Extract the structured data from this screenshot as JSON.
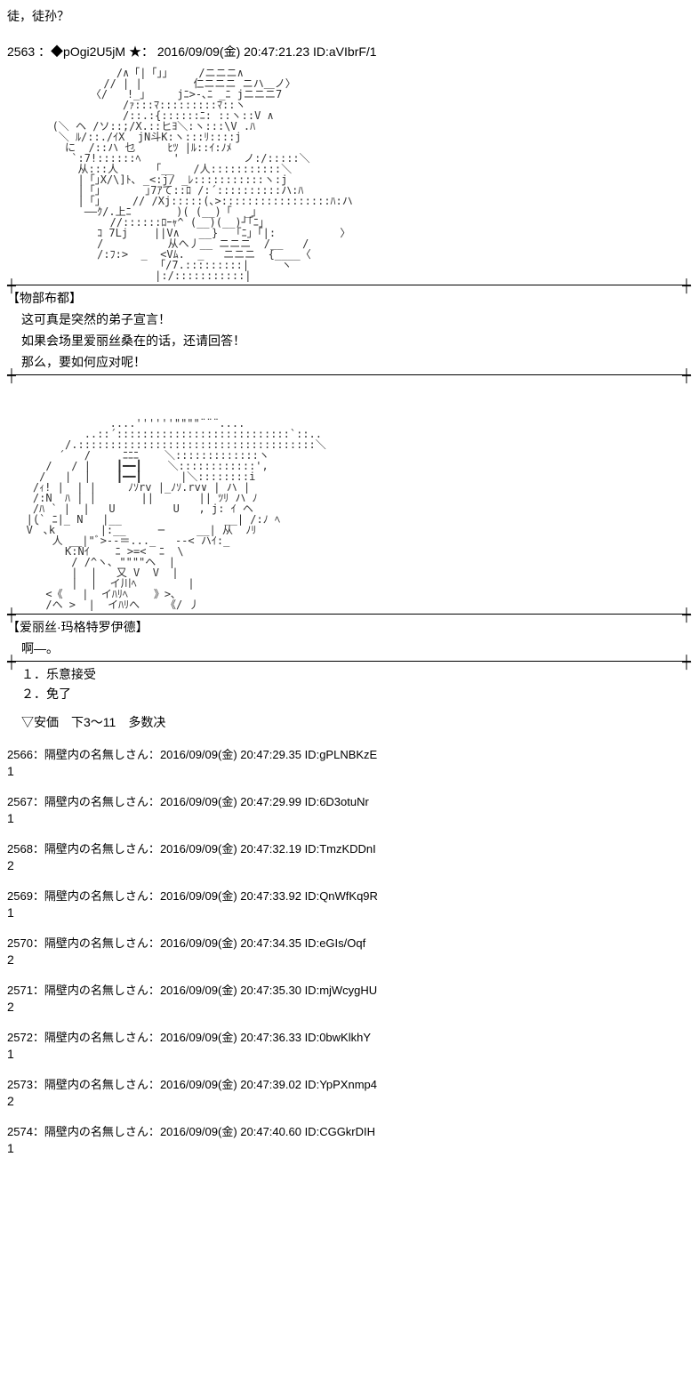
{
  "top_text": "徒，徒孙？",
  "main_post": {
    "number": "2563",
    "name": "：◆pOgi2U5jM ★：",
    "date": "2016/09/09(金) 20:47:21.23",
    "id_label": "ID:",
    "id": "aVIbrF/1"
  },
  "ascii_art_1": "                 /∧「|「」」    /ニニニ∧\n               // | |        仁ニニニ ニハ＿ノ〉\n             〈/   !_｣     jﾆ>-､ﾆ _ﾆ jニニニ7\n                  /ｧ:::ﾏ:::::::::ﾏ::ヽ\n                  /::.:{::::::ﾆ: ::ヽ::V ∧\n       (＼ ヘ /ソ::;/X.::ヒﾖ＼:ヽ:::\\V .ﾊ\n        ＼ ﾙ/::./ｲX  jN斗K:ヽ:::ﾘ::::j\n         に  /::ハ 乜     ﾋﾂ |ﾙ::ｲ:ﾉﾒ\n          `:7!::::::ﾍ     '          ノ:/:::::＼\n           从:::人     「__   /人:::::::::::＼\n           |「｣X/\\]ﾄ､ _<:j/ _ﾚ:::::::::::ヽ:j\n           |「｣       ｣7ｱて::ﾛ /:´::::::::::ハ:ﾊ\n           |「｣     // /Xj:::::(､>:::::::::::::::::ﾊ:ハ\n            ――ｸ/.上ﾆ       )( (__)「  _｣\n                //::::::ﾛｰｬ^ (__)(__)┘｢ﾆ｣\n              ｺ 7Lj    ||V∧   __}  「ﾆ｣「|:          〉\n              /          从へ丿__ ニニニ  /__   /\n              /:ﾌ:>  _  <Vﾑ.  _   ニニニ  {____〈\n                       「/7.:::::::::|     ヽ\n                       |:/:::::::::::|",
  "speaker_1": "【物部布都】",
  "dialogue_1": [
    "这可真是突然的弟子宣言！",
    "如果会场里爱丽丝桑在的话，还请回答！",
    "那么，要如何应对呢！"
  ],
  "ascii_art_2": "                ....''''''\"\"\"\"¨¨¨....\n            ..::´:::::::::::::::::::::::::::`::..\n         /.:::::::::::::::::::::::::::::::::::::＼\n        ´   /     ﾆﾆﾆ    ＼:::::::::::::ヽ\n      /   / |    ┃━━┃    ＼::::::::::::',\n     /   |  |    ┃━━┃      |＼::::::::i\n    /ｨ! |  | |     ﾉｿrv |_ﾉｿ.rv∨ | ハ |\n    /:N  ﾊ | |       ||       || ﾂﾘ ハ ﾉ\n    /ﾊ ` |  |   U         U   , j: ｲ ヘ\n   |(` ﾆ|_ N   |__                __| /:ﾉ ﾍ\n   V｀､k       |:__     ─     __| 从  ﾉﾘ\n       人 __|\"ﾞ>--＝..._   --< ハｲ:_\n         K:Nｲ    ﾆ >=<  ﾆ  \\\n          / /^ヽ､ \"\"\"\"ヘ  |\n          |  |   又 V  V  |\n          |  |  イ川ﾍ        |\n      <《   |  イﾊﾘﾍ    》>､\n      /ヘ >  |  イﾊﾘへ    《/ 丿",
  "speaker_2": "【爱丽丝·玛格特罗伊德】",
  "dialogue_2": "啊—。",
  "choices": [
    "１．乐意接受",
    "２．免了"
  ],
  "vote_text": "▽安価　下3～11　多数决",
  "replies": [
    {
      "number": "2566",
      "name": "：隔壁内の名無しさん：",
      "date": "2016/09/09(金) 20:47:29.35",
      "id": "gPLNBKzE",
      "body": "1"
    },
    {
      "number": "2567",
      "name": "：隔壁内の名無しさん：",
      "date": "2016/09/09(金) 20:47:29.99",
      "id": "6D3otuNr",
      "body": "1"
    },
    {
      "number": "2568",
      "name": "：隔壁内の名無しさん：",
      "date": "2016/09/09(金) 20:47:32.19",
      "id": "TmzKDDnI",
      "body": "2"
    },
    {
      "number": "2569",
      "name": "：隔壁内の名無しさん：",
      "date": "2016/09/09(金) 20:47:33.92",
      "id": "QnWfKq9R",
      "body": "1"
    },
    {
      "number": "2570",
      "name": "：隔壁内の名無しさん：",
      "date": "2016/09/09(金) 20:47:34.35",
      "id": "eGIs/Oqf",
      "body": "2"
    },
    {
      "number": "2571",
      "name": "：隔壁内の名無しさん：",
      "date": "2016/09/09(金) 20:47:35.30",
      "id": "mjWcygHU",
      "body": "2"
    },
    {
      "number": "2572",
      "name": "：隔壁内の名無しさん：",
      "date": "2016/09/09(金) 20:47:36.33",
      "id": "0bwKlkhY",
      "body": "1"
    },
    {
      "number": "2573",
      "name": "：隔壁内の名無しさん：",
      "date": "2016/09/09(金) 20:47:39.02",
      "id": "YpPXnmp4",
      "body": "2"
    },
    {
      "number": "2574",
      "name": "：隔壁内の名無しさん：",
      "date": "2016/09/09(金) 20:47:40.60",
      "id": "CGGkrDIH",
      "body": "1"
    }
  ],
  "id_label": "ID:"
}
